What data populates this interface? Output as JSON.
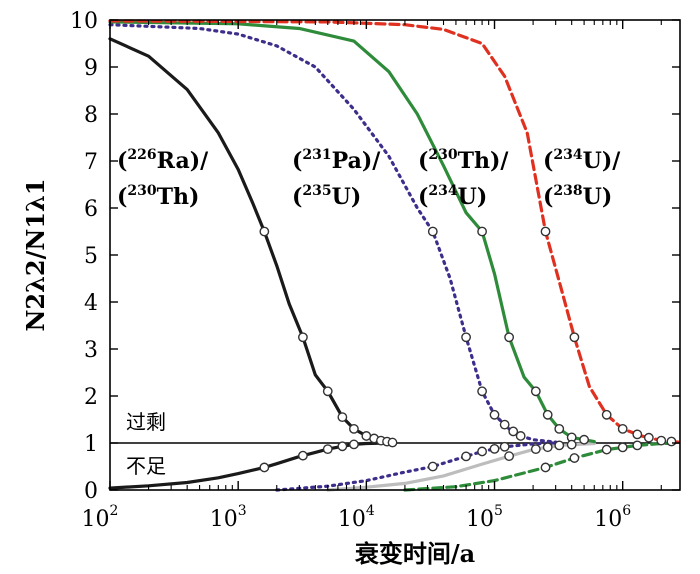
{
  "chart_data": {
    "type": "line",
    "title": "",
    "xlabel": "衰变时间/a",
    "ylabel": "N2λ2/N1λ1",
    "xscale": "log",
    "xlim": [
      100,
      2800000
    ],
    "ylim": [
      0,
      10
    ],
    "x_ticks": [
      {
        "base": "10",
        "exp": "2"
      },
      {
        "base": "10",
        "exp": "3"
      },
      {
        "base": "10",
        "exp": "4"
      },
      {
        "base": "10",
        "exp": "5"
      },
      {
        "base": "10",
        "exp": "6"
      }
    ],
    "y_ticks": [
      "0",
      "1",
      "2",
      "3",
      "4",
      "5",
      "6",
      "7",
      "8",
      "9",
      "10"
    ],
    "reference_line": {
      "y": 1,
      "labels": {
        "above": "过剩",
        "below": "不足"
      }
    },
    "series": [
      {
        "name": "226Ra/230Th",
        "label_line1": {
          "pre": "(",
          "sup": "226",
          "main": "Ra)/"
        },
        "label_line2": {
          "pre": "(",
          "sup": "230",
          "main": "Th)"
        },
        "color": "#1a1a1a",
        "style": "solid",
        "excess": [
          {
            "x": 100,
            "y": 9.6
          },
          {
            "x": 200,
            "y": 9.23
          },
          {
            "x": 400,
            "y": 8.52
          },
          {
            "x": 700,
            "y": 7.6
          },
          {
            "x": 1000,
            "y": 6.82
          },
          {
            "x": 1300,
            "y": 6.1
          },
          {
            "x": 1600,
            "y": 5.5
          },
          {
            "x": 2000,
            "y": 4.77
          },
          {
            "x": 2500,
            "y": 3.96
          },
          {
            "x": 3200,
            "y": 3.25
          },
          {
            "x": 4000,
            "y": 2.45
          },
          {
            "x": 5000,
            "y": 2.1
          },
          {
            "x": 6500,
            "y": 1.55
          },
          {
            "x": 8000,
            "y": 1.3
          },
          {
            "x": 10000,
            "y": 1.15
          },
          {
            "x": 13000,
            "y": 1.05
          },
          {
            "x": 16000,
            "y": 1.01
          }
        ],
        "excess_markers": [
          1600,
          3200,
          5000,
          6500,
          8000,
          10000,
          11500,
          13000,
          14500,
          16000
        ],
        "deficit": [
          {
            "x": 100,
            "y": 0.04
          },
          {
            "x": 200,
            "y": 0.09
          },
          {
            "x": 400,
            "y": 0.16
          },
          {
            "x": 700,
            "y": 0.26
          },
          {
            "x": 1000,
            "y": 0.35
          },
          {
            "x": 1600,
            "y": 0.48
          },
          {
            "x": 2000,
            "y": 0.56
          },
          {
            "x": 3000,
            "y": 0.71
          },
          {
            "x": 4000,
            "y": 0.8
          },
          {
            "x": 5000,
            "y": 0.87
          },
          {
            "x": 6500,
            "y": 0.93
          },
          {
            "x": 8000,
            "y": 0.97
          },
          {
            "x": 10000,
            "y": 0.99
          },
          {
            "x": 16000,
            "y": 1.0
          }
        ],
        "deficit_markers": [
          1600,
          3200,
          5000,
          6500,
          8000
        ]
      },
      {
        "name": "231Pa/235U",
        "label_line1": {
          "pre": "(",
          "sup": "231",
          "main": "Pa)/"
        },
        "label_line2": {
          "pre": "(",
          "sup": "235",
          "main": "U)"
        },
        "color": "#3d2e8c",
        "style": "dotted",
        "excess": [
          {
            "x": 100,
            "y": 9.9
          },
          {
            "x": 500,
            "y": 9.82
          },
          {
            "x": 1000,
            "y": 9.7
          },
          {
            "x": 2000,
            "y": 9.45
          },
          {
            "x": 4000,
            "y": 9.0
          },
          {
            "x": 8000,
            "y": 8.1
          },
          {
            "x": 15000,
            "y": 7.1
          },
          {
            "x": 25000,
            "y": 6.0
          },
          {
            "x": 33000,
            "y": 5.5
          },
          {
            "x": 45000,
            "y": 4.5
          },
          {
            "x": 60000,
            "y": 3.25
          },
          {
            "x": 80000,
            "y": 2.1
          },
          {
            "x": 100000,
            "y": 1.6
          },
          {
            "x": 130000,
            "y": 1.3
          },
          {
            "x": 160000,
            "y": 1.15
          },
          {
            "x": 200000,
            "y": 1.07
          },
          {
            "x": 300000,
            "y": 1.02
          }
        ],
        "excess_markers": [
          33000,
          60000,
          80000,
          100000,
          120000,
          140000,
          160000
        ],
        "deficit": [
          {
            "x": 2000,
            "y": 0.0
          },
          {
            "x": 5000,
            "y": 0.08
          },
          {
            "x": 10000,
            "y": 0.2
          },
          {
            "x": 20000,
            "y": 0.38
          },
          {
            "x": 33000,
            "y": 0.5
          },
          {
            "x": 50000,
            "y": 0.65
          },
          {
            "x": 80000,
            "y": 0.82
          },
          {
            "x": 120000,
            "y": 0.92
          },
          {
            "x": 200000,
            "y": 0.98
          },
          {
            "x": 300000,
            "y": 1.0
          }
        ],
        "deficit_markers": [
          33000,
          60000,
          80000,
          100000,
          120000
        ]
      },
      {
        "name": "230Th/234U",
        "label_line1": {
          "pre": "(",
          "sup": "230",
          "main": "Th)/"
        },
        "label_line2": {
          "pre": "(",
          "sup": "234",
          "main": "U)"
        },
        "color": "#2e8b3a",
        "deficit_color": "#bdbdbd",
        "style": "solid",
        "excess": [
          {
            "x": 100,
            "y": 9.96
          },
          {
            "x": 1000,
            "y": 9.92
          },
          {
            "x": 3000,
            "y": 9.82
          },
          {
            "x": 8000,
            "y": 9.55
          },
          {
            "x": 15000,
            "y": 8.9
          },
          {
            "x": 25000,
            "y": 8.0
          },
          {
            "x": 40000,
            "y": 6.9
          },
          {
            "x": 60000,
            "y": 5.9
          },
          {
            "x": 80000,
            "y": 5.5
          },
          {
            "x": 100000,
            "y": 4.6
          },
          {
            "x": 130000,
            "y": 3.25
          },
          {
            "x": 170000,
            "y": 2.4
          },
          {
            "x": 210000,
            "y": 2.1
          },
          {
            "x": 260000,
            "y": 1.6
          },
          {
            "x": 320000,
            "y": 1.3
          },
          {
            "x": 400000,
            "y": 1.12
          },
          {
            "x": 600000,
            "y": 1.03
          }
        ],
        "excess_markers": [
          80000,
          130000,
          210000,
          260000,
          320000,
          400000,
          500000
        ],
        "deficit": [
          {
            "x": 5000,
            "y": 0.0
          },
          {
            "x": 10000,
            "y": 0.06
          },
          {
            "x": 20000,
            "y": 0.14
          },
          {
            "x": 40000,
            "y": 0.3
          },
          {
            "x": 80000,
            "y": 0.55
          },
          {
            "x": 130000,
            "y": 0.72
          },
          {
            "x": 200000,
            "y": 0.86
          },
          {
            "x": 320000,
            "y": 0.95
          },
          {
            "x": 600000,
            "y": 0.99
          }
        ],
        "deficit_markers": [
          130000,
          210000,
          260000,
          320000,
          400000
        ]
      },
      {
        "name": "234U/238U",
        "label_line1": {
          "pre": "(",
          "sup": "234",
          "main": "U)/"
        },
        "label_line2": {
          "pre": "(",
          "sup": "238",
          "main": "U)"
        },
        "color": "#e03020",
        "deficit_color": "#2e8b3a",
        "style": "dashed",
        "excess": [
          {
            "x": 100,
            "y": 9.98
          },
          {
            "x": 5000,
            "y": 9.96
          },
          {
            "x": 20000,
            "y": 9.9
          },
          {
            "x": 40000,
            "y": 9.8
          },
          {
            "x": 80000,
            "y": 9.5
          },
          {
            "x": 120000,
            "y": 8.8
          },
          {
            "x": 180000,
            "y": 7.6
          },
          {
            "x": 250000,
            "y": 5.5
          },
          {
            "x": 330000,
            "y": 4.3
          },
          {
            "x": 420000,
            "y": 3.25
          },
          {
            "x": 550000,
            "y": 2.2
          },
          {
            "x": 750000,
            "y": 1.6
          },
          {
            "x": 1000000,
            "y": 1.3
          },
          {
            "x": 1400000,
            "y": 1.15
          },
          {
            "x": 2000000,
            "y": 1.05
          },
          {
            "x": 2700000,
            "y": 1.02
          }
        ],
        "excess_markers": [
          250000,
          420000,
          750000,
          1000000,
          1300000,
          1600000,
          2000000,
          2400000
        ],
        "deficit": [
          {
            "x": 20000,
            "y": 0.0
          },
          {
            "x": 50000,
            "y": 0.07
          },
          {
            "x": 100000,
            "y": 0.2
          },
          {
            "x": 250000,
            "y": 0.48
          },
          {
            "x": 420000,
            "y": 0.68
          },
          {
            "x": 750000,
            "y": 0.86
          },
          {
            "x": 1300000,
            "y": 0.95
          },
          {
            "x": 2000000,
            "y": 0.99
          },
          {
            "x": 2700000,
            "y": 1.0
          }
        ],
        "deficit_markers": [
          250000,
          420000,
          750000,
          1000000,
          1300000
        ]
      }
    ]
  }
}
